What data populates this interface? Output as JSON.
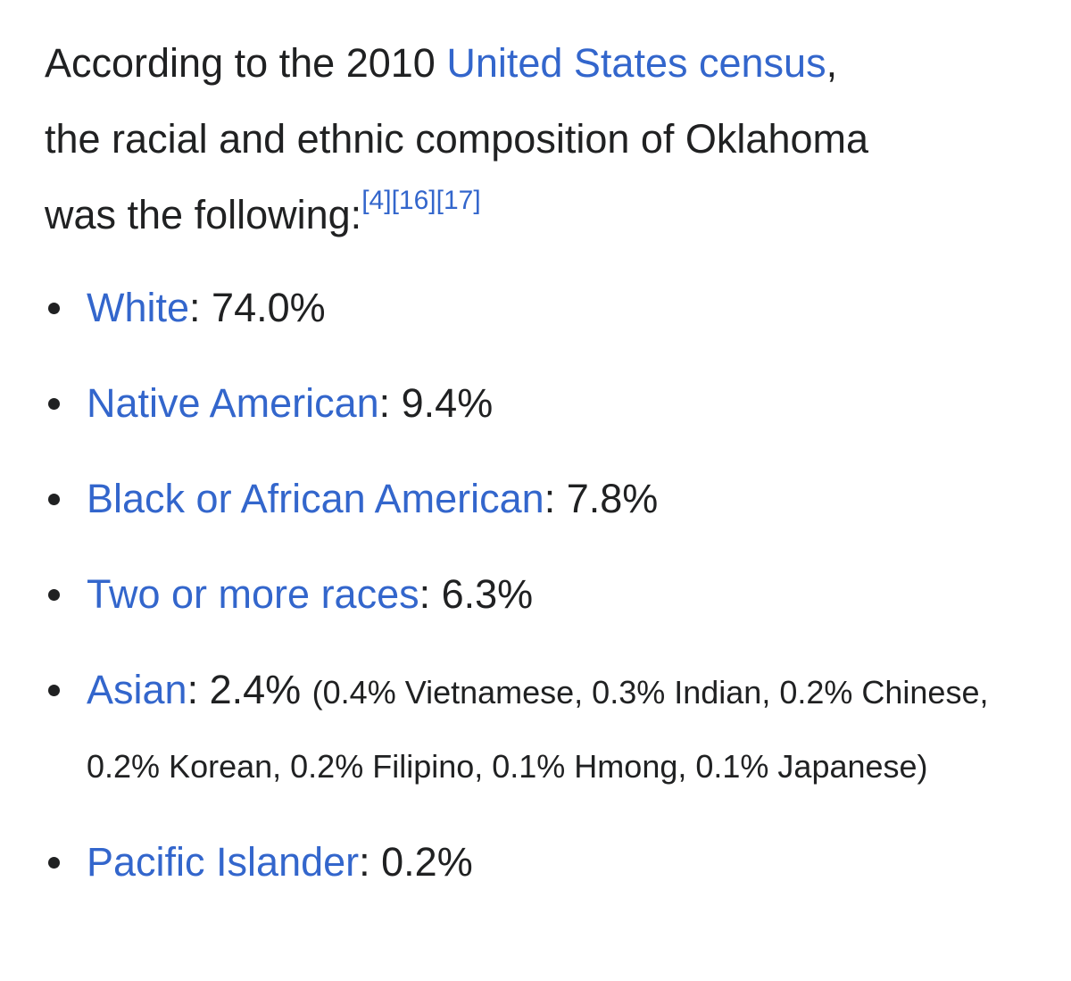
{
  "paragraph": {
    "before": "According to the 2010",
    "link": "United States census",
    "comma": ",",
    "line2": "the racial and ethnic composition of Oklahoma",
    "line3": "was the following:",
    "refs": [
      "[4]",
      "[16]",
      "[17]"
    ]
  },
  "list": [
    {
      "link": "White",
      "value": ": 74.0%"
    },
    {
      "link": "Native American",
      "value": ": 9.4%"
    },
    {
      "link": "Black or African American",
      "value": ": 7.8%"
    },
    {
      "link": "Two or more races",
      "value": ": 6.3%"
    },
    {
      "link": "Asian",
      "value": ": 2.4%",
      "detail": "(0.4% Vietnamese, 0.3% Indian, 0.2% Chinese, 0.2% Korean, 0.2% Filipino, 0.1% Hmong, 0.1% Japanese)"
    },
    {
      "link": "Pacific Islander",
      "value": ": 0.2%"
    }
  ]
}
